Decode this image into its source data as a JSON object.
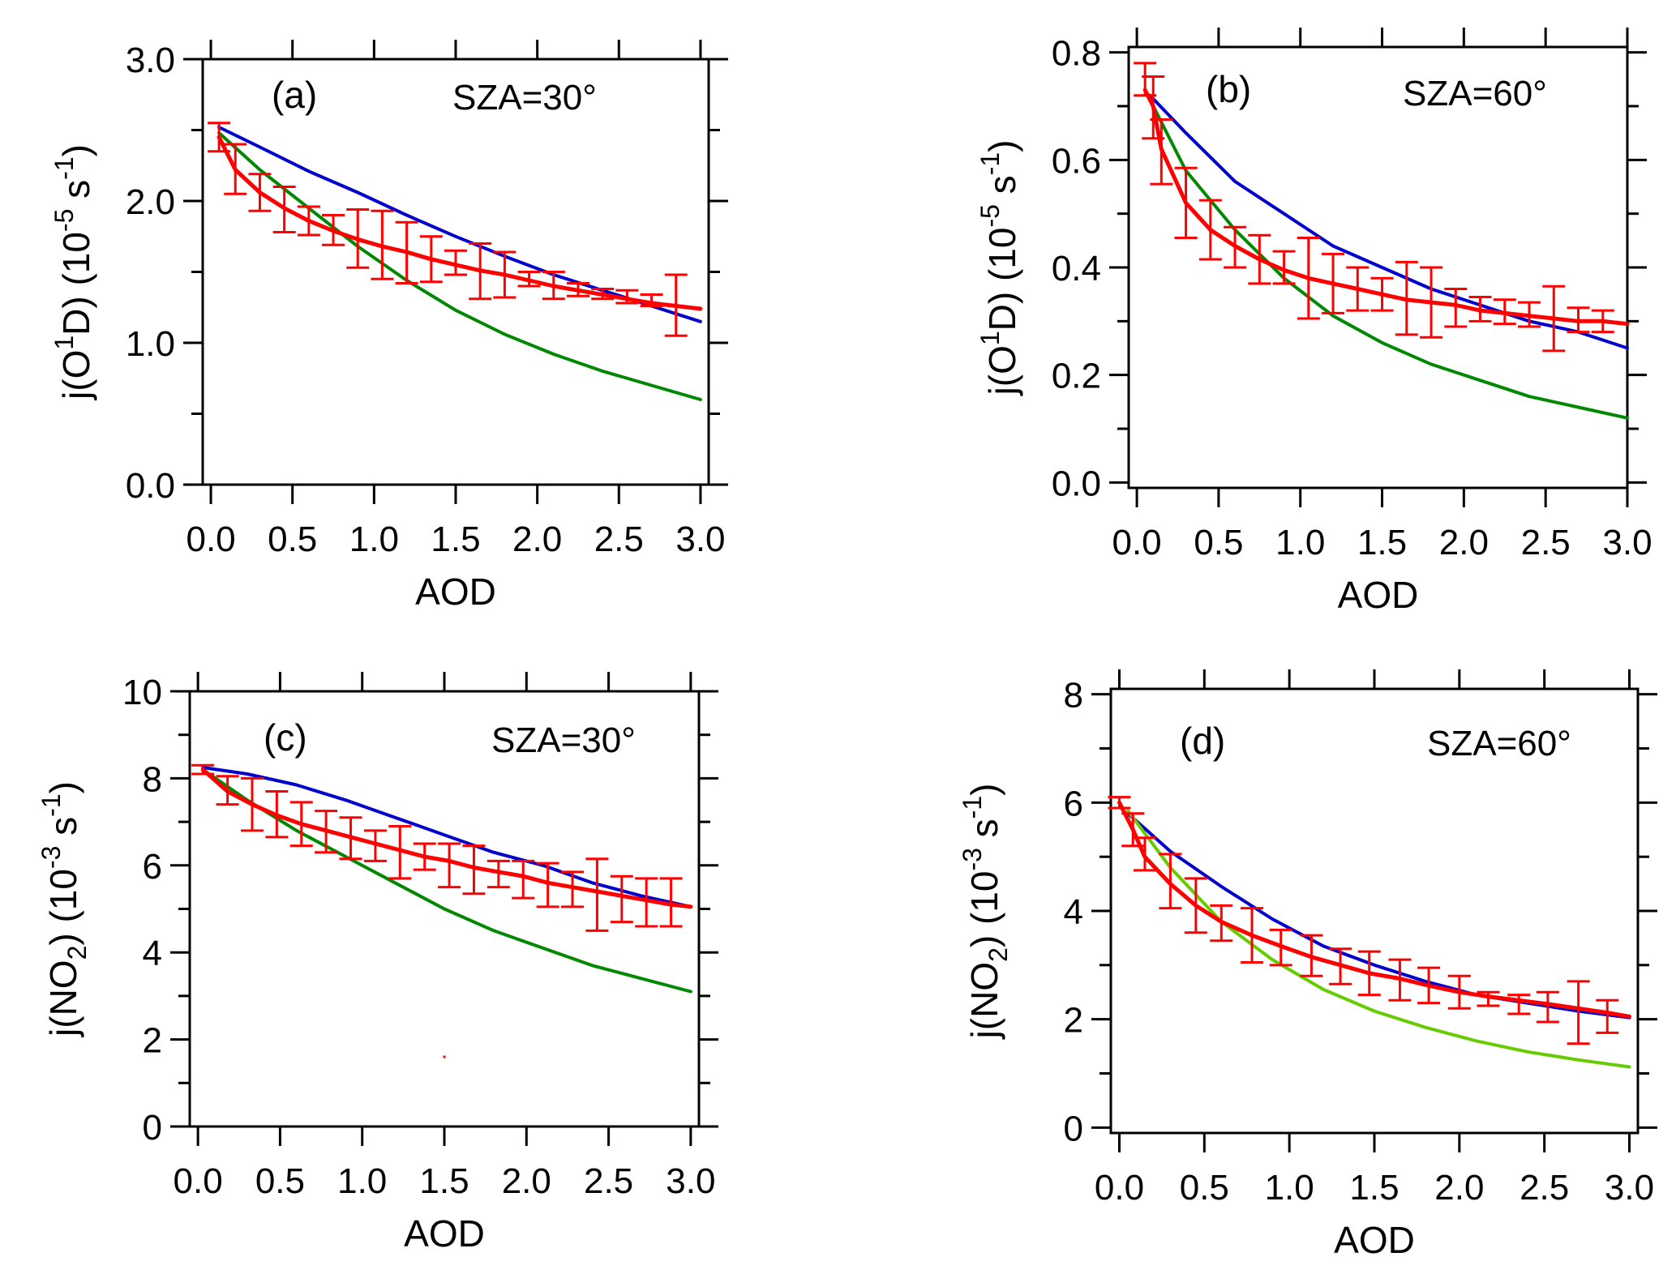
{
  "figure": {
    "colors": {
      "model_blue": "#0000cc",
      "model_green": "#008800",
      "model_green_d": "#66cc00",
      "obs_red": "#ff0000",
      "axis": "#000000"
    }
  },
  "chart_data": [
    {
      "id": "a",
      "type": "line",
      "panel_label": "(a)",
      "annotation": "SZA=30°",
      "xlabel": "AOD",
      "ylabel": {
        "prefix": "j(O",
        "sup1": "1",
        "mid": "D)  (10",
        "sup2": "-5",
        "s": " s",
        "sup3": "-1",
        "suffix": ")"
      },
      "xlim": [
        -0.05,
        3.05
      ],
      "ylim": [
        0,
        3.0
      ],
      "xticks": [
        0,
        0.5,
        1.0,
        1.5,
        2.0,
        2.5,
        3.0
      ],
      "xtick_labels": [
        "0.0",
        "0.5",
        "1.0",
        "1.5",
        "2.0",
        "2.5",
        "3.0"
      ],
      "yticks": [
        0,
        1.0,
        2.0,
        3.0
      ],
      "ytick_labels": [
        "0.0",
        "1.0",
        "2.0",
        "3.0"
      ],
      "yminor": [
        0.5,
        1.5,
        2.5
      ],
      "grid": false,
      "series": [
        {
          "name": "model-blue",
          "color": "#0000cc",
          "x": [
            0.05,
            0.3,
            0.6,
            0.9,
            1.2,
            1.5,
            1.8,
            2.1,
            2.4,
            2.7,
            3.0
          ],
          "y": [
            2.52,
            2.38,
            2.21,
            2.06,
            1.9,
            1.75,
            1.61,
            1.48,
            1.37,
            1.26,
            1.15
          ]
        },
        {
          "name": "model-green",
          "color": "#008800",
          "x": [
            0.05,
            0.3,
            0.6,
            0.9,
            1.2,
            1.5,
            1.8,
            2.1,
            2.4,
            2.7,
            3.0
          ],
          "y": [
            2.48,
            2.22,
            1.95,
            1.68,
            1.44,
            1.23,
            1.06,
            0.92,
            0.8,
            0.7,
            0.6
          ]
        },
        {
          "name": "observed-red",
          "color": "#ff0000",
          "x": [
            0.05,
            0.15,
            0.3,
            0.45,
            0.6,
            0.75,
            0.9,
            1.05,
            1.2,
            1.35,
            1.5,
            1.65,
            1.8,
            1.95,
            2.1,
            2.25,
            2.4,
            2.55,
            2.7,
            2.85,
            3.0
          ],
          "y": [
            2.45,
            2.22,
            2.06,
            1.95,
            1.86,
            1.79,
            1.73,
            1.68,
            1.64,
            1.59,
            1.55,
            1.51,
            1.48,
            1.44,
            1.4,
            1.37,
            1.34,
            1.31,
            1.28,
            1.26,
            1.24
          ],
          "errbar_x": [
            0.05,
            0.15,
            0.3,
            0.45,
            0.6,
            0.75,
            0.9,
            1.05,
            1.2,
            1.35,
            1.5,
            1.65,
            1.8,
            1.95,
            2.1,
            2.25,
            2.4,
            2.55,
            2.7,
            2.85
          ],
          "errbar_low": [
            2.35,
            2.05,
            1.93,
            1.78,
            1.76,
            1.69,
            1.53,
            1.45,
            1.42,
            1.43,
            1.48,
            1.31,
            1.32,
            1.4,
            1.31,
            1.33,
            1.31,
            1.28,
            1.26,
            1.05
          ],
          "errbar_high": [
            2.55,
            2.4,
            2.19,
            2.1,
            1.96,
            1.9,
            1.94,
            1.93,
            1.85,
            1.75,
            1.65,
            1.7,
            1.64,
            1.5,
            1.5,
            1.42,
            1.38,
            1.37,
            1.34,
            1.48
          ]
        }
      ]
    },
    {
      "id": "b",
      "type": "line",
      "panel_label": "(b)",
      "annotation": "SZA=60°",
      "xlabel": "AOD",
      "ylabel": {
        "prefix": "j(O",
        "sup1": "1",
        "mid": "D)  (10",
        "sup2": "-5",
        "s": " s",
        "sup3": "-1",
        "suffix": ")"
      },
      "xlim": [
        -0.05,
        3.0
      ],
      "ylim": [
        -0.01,
        0.81
      ],
      "xticks": [
        0,
        0.5,
        1.0,
        1.5,
        2.0,
        2.5,
        3.0
      ],
      "xtick_labels": [
        "0.0",
        "0.5",
        "1.0",
        "1.5",
        "2.0",
        "2.5",
        "3.0"
      ],
      "yticks": [
        0,
        0.2,
        0.4,
        0.6,
        0.8
      ],
      "ytick_labels": [
        "0.0",
        "0.2",
        "0.4",
        "0.6",
        "0.8"
      ],
      "yminor": [
        0.1,
        0.3,
        0.5,
        0.7
      ],
      "grid": false,
      "series": [
        {
          "name": "model-blue",
          "color": "#0000cc",
          "x": [
            0.08,
            0.3,
            0.6,
            0.9,
            1.2,
            1.5,
            1.8,
            2.1,
            2.4,
            2.7,
            3.0
          ],
          "y": [
            0.72,
            0.65,
            0.56,
            0.5,
            0.44,
            0.4,
            0.36,
            0.33,
            0.3,
            0.28,
            0.25
          ]
        },
        {
          "name": "model-green",
          "color": "#008800",
          "x": [
            0.05,
            0.3,
            0.6,
            0.9,
            1.2,
            1.5,
            1.8,
            2.1,
            2.4,
            2.7,
            3.0
          ],
          "y": [
            0.73,
            0.58,
            0.47,
            0.38,
            0.31,
            0.26,
            0.22,
            0.19,
            0.16,
            0.14,
            0.12
          ]
        },
        {
          "name": "observed-red",
          "color": "#ff0000",
          "x": [
            0.05,
            0.1,
            0.15,
            0.3,
            0.45,
            0.6,
            0.75,
            0.9,
            1.05,
            1.2,
            1.35,
            1.5,
            1.65,
            1.8,
            1.95,
            2.1,
            2.25,
            2.4,
            2.55,
            2.7,
            2.85,
            3.0
          ],
          "y": [
            0.73,
            0.7,
            0.62,
            0.52,
            0.47,
            0.44,
            0.415,
            0.395,
            0.38,
            0.37,
            0.36,
            0.35,
            0.34,
            0.335,
            0.33,
            0.32,
            0.315,
            0.31,
            0.305,
            0.3,
            0.3,
            0.295
          ],
          "errbar_x": [
            0.05,
            0.1,
            0.15,
            0.3,
            0.45,
            0.6,
            0.75,
            0.9,
            1.05,
            1.2,
            1.35,
            1.5,
            1.65,
            1.8,
            1.95,
            2.1,
            2.25,
            2.4,
            2.55,
            2.7,
            2.85
          ],
          "errbar_low": [
            0.72,
            0.64,
            0.555,
            0.455,
            0.415,
            0.4,
            0.37,
            0.37,
            0.305,
            0.315,
            0.32,
            0.32,
            0.275,
            0.27,
            0.29,
            0.3,
            0.295,
            0.29,
            0.245,
            0.28,
            0.28
          ],
          "errbar_high": [
            0.78,
            0.755,
            0.675,
            0.585,
            0.525,
            0.475,
            0.46,
            0.43,
            0.455,
            0.425,
            0.4,
            0.38,
            0.41,
            0.4,
            0.36,
            0.345,
            0.34,
            0.335,
            0.365,
            0.325,
            0.32
          ]
        }
      ]
    },
    {
      "id": "c",
      "type": "line",
      "panel_label": "(c)",
      "annotation": "SZA=30°",
      "xlabel": "AOD",
      "ylabel": {
        "prefix": "j(NO",
        "sub1": "2",
        "mid": ")  (10",
        "sup2": "-3",
        "s": " s",
        "sup3": "-1",
        "suffix": ")"
      },
      "xlim": [
        -0.05,
        3.05
      ],
      "ylim": [
        0,
        10
      ],
      "xticks": [
        0,
        0.5,
        1.0,
        1.5,
        2.0,
        2.5,
        3.0
      ],
      "xtick_labels": [
        "0.0",
        "0.5",
        "1.0",
        "1.5",
        "2.0",
        "2.5",
        "3.0"
      ],
      "yticks": [
        0,
        2,
        4,
        6,
        8,
        10
      ],
      "ytick_labels": [
        "0",
        "2",
        "4",
        "6",
        "8",
        "10"
      ],
      "yminor": [
        1,
        3,
        5,
        7,
        9
      ],
      "grid": false,
      "stray_marks": [
        {
          "x": 1.5,
          "y": 1.6,
          "color": "#ff0000"
        }
      ],
      "series": [
        {
          "name": "model-blue",
          "color": "#0000cc",
          "x": [
            0.03,
            0.3,
            0.6,
            0.9,
            1.2,
            1.5,
            1.8,
            2.1,
            2.4,
            2.7,
            3.0
          ],
          "y": [
            8.25,
            8.1,
            7.85,
            7.5,
            7.1,
            6.7,
            6.3,
            6.0,
            5.6,
            5.3,
            5.05
          ]
        },
        {
          "name": "model-green",
          "color": "#008800",
          "x": [
            0.03,
            0.3,
            0.6,
            0.9,
            1.2,
            1.5,
            1.8,
            2.1,
            2.4,
            2.7,
            3.0
          ],
          "y": [
            8.2,
            7.5,
            6.8,
            6.2,
            5.6,
            5.0,
            4.5,
            4.1,
            3.7,
            3.4,
            3.1
          ]
        },
        {
          "name": "observed-red",
          "color": "#ff0000",
          "x": [
            0.03,
            0.18,
            0.33,
            0.48,
            0.63,
            0.78,
            0.93,
            1.08,
            1.23,
            1.38,
            1.53,
            1.68,
            1.83,
            1.98,
            2.13,
            2.28,
            2.43,
            2.58,
            2.73,
            2.88,
            3.0
          ],
          "y": [
            8.2,
            7.7,
            7.4,
            7.15,
            6.95,
            6.8,
            6.65,
            6.5,
            6.35,
            6.2,
            6.1,
            5.95,
            5.85,
            5.75,
            5.6,
            5.5,
            5.4,
            5.3,
            5.2,
            5.1,
            5.05
          ],
          "errbar_x": [
            0.03,
            0.18,
            0.33,
            0.48,
            0.63,
            0.78,
            0.93,
            1.08,
            1.23,
            1.38,
            1.53,
            1.68,
            1.83,
            1.98,
            2.13,
            2.28,
            2.43,
            2.58,
            2.73,
            2.88
          ],
          "errbar_low": [
            8.1,
            7.4,
            6.8,
            6.65,
            6.45,
            6.3,
            6.15,
            6.1,
            5.7,
            5.9,
            5.5,
            5.35,
            5.5,
            5.25,
            5.05,
            5.05,
            4.5,
            4.7,
            4.6,
            4.6
          ],
          "errbar_high": [
            8.3,
            8.05,
            8.0,
            7.7,
            7.45,
            7.25,
            7.1,
            6.8,
            6.9,
            6.5,
            6.5,
            6.45,
            6.1,
            6.1,
            6.05,
            5.85,
            6.15,
            5.75,
            5.7,
            5.7
          ]
        }
      ]
    },
    {
      "id": "d",
      "type": "line",
      "panel_label": "(d)",
      "annotation": "SZA=60°",
      "xlabel": "AOD",
      "ylabel": {
        "prefix": "j(NO",
        "sub1": "2",
        "mid": ")  (10",
        "sup2": "-3",
        "s": " s",
        "sup3": "-1",
        "suffix": ")"
      },
      "xlim": [
        -0.05,
        3.05
      ],
      "ylim": [
        -0.1,
        8.1
      ],
      "xticks": [
        0,
        0.5,
        1.0,
        1.5,
        2.0,
        2.5,
        3.0
      ],
      "xtick_labels": [
        "0.0",
        "0.5",
        "1.0",
        "1.5",
        "2.0",
        "2.5",
        "3.0"
      ],
      "yticks": [
        0,
        2,
        4,
        6,
        8
      ],
      "ytick_labels": [
        "0",
        "2",
        "4",
        "6",
        "8"
      ],
      "yminor": [
        1,
        3,
        5,
        7
      ],
      "grid": false,
      "series": [
        {
          "name": "model-blue",
          "color": "#0000cc",
          "x": [
            0.05,
            0.3,
            0.6,
            0.9,
            1.2,
            1.5,
            1.8,
            2.1,
            2.4,
            2.7,
            3.0
          ],
          "y": [
            5.8,
            5.1,
            4.45,
            3.85,
            3.35,
            3.0,
            2.7,
            2.45,
            2.3,
            2.15,
            2.03
          ]
        },
        {
          "name": "model-green",
          "color": "#66cc00",
          "x": [
            0.05,
            0.3,
            0.6,
            0.9,
            1.2,
            1.5,
            1.8,
            2.1,
            2.4,
            2.7,
            3.0
          ],
          "y": [
            5.85,
            4.8,
            3.8,
            3.1,
            2.55,
            2.15,
            1.85,
            1.6,
            1.4,
            1.25,
            1.12
          ]
        },
        {
          "name": "observed-red",
          "color": "#ff0000",
          "x": [
            0.0,
            0.08,
            0.15,
            0.3,
            0.45,
            0.6,
            0.78,
            0.95,
            1.13,
            1.3,
            1.47,
            1.65,
            1.82,
            2.0,
            2.17,
            2.35,
            2.52,
            2.7,
            2.87,
            3.0
          ],
          "y": [
            6.0,
            5.5,
            5.0,
            4.5,
            4.1,
            3.8,
            3.55,
            3.35,
            3.15,
            3.0,
            2.85,
            2.75,
            2.62,
            2.5,
            2.42,
            2.35,
            2.28,
            2.2,
            2.12,
            2.05
          ],
          "errbar_x": [
            0.0,
            0.08,
            0.15,
            0.3,
            0.45,
            0.6,
            0.78,
            0.95,
            1.13,
            1.3,
            1.47,
            1.65,
            1.82,
            2.0,
            2.17,
            2.35,
            2.52,
            2.7,
            2.87
          ],
          "errbar_low": [
            5.9,
            5.2,
            4.75,
            4.05,
            3.6,
            3.45,
            3.05,
            3.0,
            2.8,
            2.65,
            2.45,
            2.35,
            2.3,
            2.2,
            2.25,
            2.1,
            1.95,
            1.55,
            1.75
          ],
          "errbar_high": [
            6.1,
            5.8,
            5.35,
            5.05,
            4.6,
            4.1,
            4.05,
            3.65,
            3.55,
            3.3,
            3.25,
            3.1,
            2.95,
            2.8,
            2.5,
            2.45,
            2.5,
            2.7,
            2.35
          ]
        }
      ]
    }
  ]
}
